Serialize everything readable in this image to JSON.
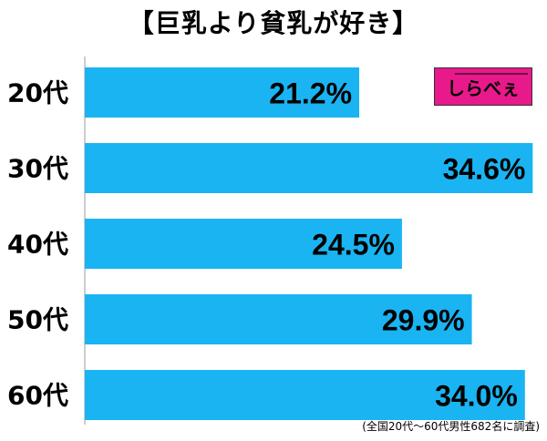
{
  "chart_data": {
    "type": "bar",
    "orientation": "horizontal",
    "title": "【巨乳より貧乳が好き】",
    "categories": [
      "20代",
      "30代",
      "40代",
      "50代",
      "60代"
    ],
    "values": [
      21.2,
      34.6,
      24.5,
      29.9,
      34.0
    ],
    "value_labels": [
      "21.2%",
      "34.6%",
      "24.5%",
      "29.9%",
      "34.0%"
    ],
    "xlim": [
      0,
      35
    ],
    "grid": false,
    "bar_color": "#1ab4f2",
    "note": "(全国20代〜60代男性682名に調査)"
  },
  "logo": {
    "text": "しらべぇ",
    "color": "#e8198b"
  }
}
